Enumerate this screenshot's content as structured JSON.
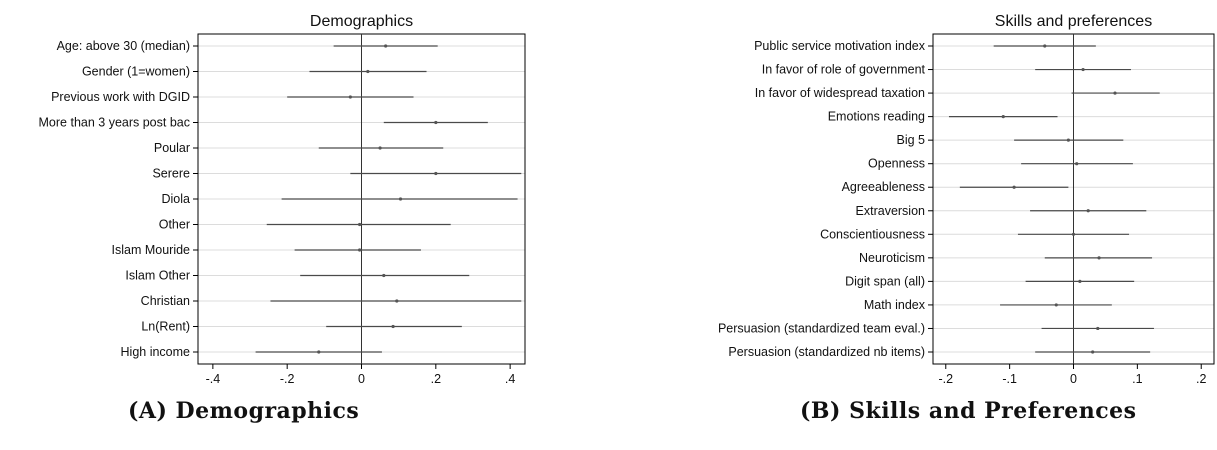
{
  "captions": {
    "a": "(A) Demographics",
    "b": "(B) Skills and Preferences"
  },
  "colors": {
    "line": "#4a4a4a",
    "grid": "#dcdcdc",
    "frame": "#000000"
  },
  "chart_data": [
    {
      "type": "coefficient",
      "title": "Demographics",
      "xlim": [
        -0.44,
        0.44
      ],
      "xticks": [
        -0.4,
        -0.2,
        0,
        0.2,
        0.4
      ],
      "xticklabels": [
        "-.4",
        "-.2",
        "0",
        ".2",
        ".4"
      ],
      "grid": true,
      "variables": [
        {
          "label": "Age: above 30 (median)",
          "est": 0.065,
          "lo": -0.075,
          "hi": 0.205
        },
        {
          "label": "Gender (1=women)",
          "est": 0.017,
          "lo": -0.14,
          "hi": 0.175
        },
        {
          "label": "Previous work with DGID",
          "est": -0.03,
          "lo": -0.2,
          "hi": 0.14
        },
        {
          "label": "More than 3 years post bac",
          "est": 0.2,
          "lo": 0.06,
          "hi": 0.34
        },
        {
          "label": "Poular",
          "est": 0.05,
          "lo": -0.115,
          "hi": 0.22
        },
        {
          "label": "Serere",
          "est": 0.2,
          "lo": -0.03,
          "hi": 0.43
        },
        {
          "label": "Diola",
          "est": 0.105,
          "lo": -0.215,
          "hi": 0.42
        },
        {
          "label": "Other",
          "est": -0.005,
          "lo": -0.255,
          "hi": 0.24
        },
        {
          "label": "Islam Mouride",
          "est": -0.005,
          "lo": -0.18,
          "hi": 0.16
        },
        {
          "label": "Islam Other",
          "est": 0.06,
          "lo": -0.165,
          "hi": 0.29
        },
        {
          "label": "Christian",
          "est": 0.095,
          "lo": -0.245,
          "hi": 0.43
        },
        {
          "label": "Ln(Rent)",
          "est": 0.085,
          "lo": -0.095,
          "hi": 0.27
        },
        {
          "label": "High income",
          "est": -0.115,
          "lo": -0.285,
          "hi": 0.055
        }
      ]
    },
    {
      "type": "coefficient",
      "title": "Skills and preferences",
      "xlim": [
        -0.22,
        0.22
      ],
      "xticks": [
        -0.2,
        -0.1,
        0,
        0.1,
        0.2
      ],
      "xticklabels": [
        "-.2",
        "-.1",
        "0",
        ".1",
        ".2"
      ],
      "grid": true,
      "variables": [
        {
          "label": "Public service motivation index",
          "est": -0.045,
          "lo": -0.125,
          "hi": 0.035
        },
        {
          "label": "In favor of role of government",
          "est": 0.015,
          "lo": -0.06,
          "hi": 0.09
        },
        {
          "label": "In favor of widespread taxation",
          "est": 0.065,
          "lo": -0.003,
          "hi": 0.135
        },
        {
          "label": "Emotions reading",
          "est": -0.11,
          "lo": -0.195,
          "hi": -0.025
        },
        {
          "label": "Big 5",
          "est": -0.008,
          "lo": -0.093,
          "hi": 0.078
        },
        {
          "label": "Openness",
          "est": 0.005,
          "lo": -0.082,
          "hi": 0.093
        },
        {
          "label": "Agreeableness",
          "est": -0.093,
          "lo": -0.178,
          "hi": -0.008
        },
        {
          "label": "Extraversion",
          "est": 0.023,
          "lo": -0.068,
          "hi": 0.114
        },
        {
          "label": "Conscientiousness",
          "est": 0.0,
          "lo": -0.087,
          "hi": 0.087
        },
        {
          "label": "Neuroticism",
          "est": 0.04,
          "lo": -0.045,
          "hi": 0.123
        },
        {
          "label": "Digit span (all)",
          "est": 0.01,
          "lo": -0.075,
          "hi": 0.095
        },
        {
          "label": "Math index",
          "est": -0.027,
          "lo": -0.115,
          "hi": 0.06
        },
        {
          "label": "Persuasion (standardized team eval.)",
          "est": 0.038,
          "lo": -0.05,
          "hi": 0.126
        },
        {
          "label": "Persuasion (standardized nb items)",
          "est": 0.03,
          "lo": -0.06,
          "hi": 0.12
        }
      ]
    }
  ]
}
